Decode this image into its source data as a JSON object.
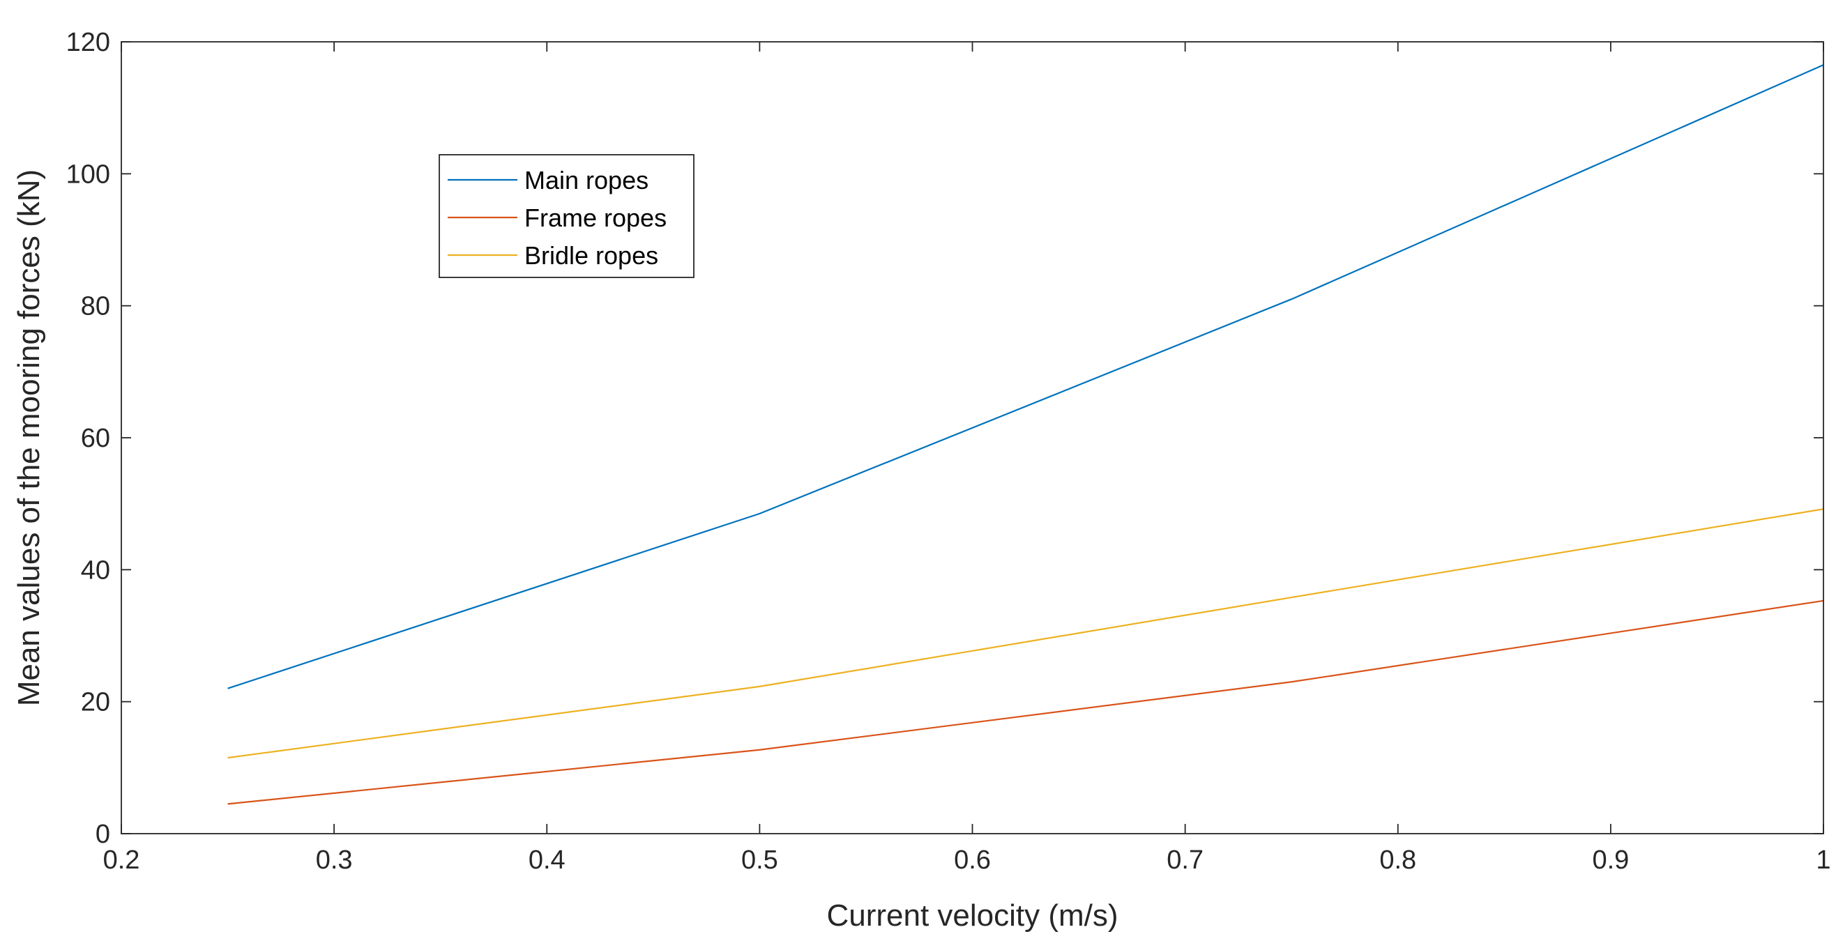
{
  "chart_data": {
    "type": "line",
    "title": "",
    "xlabel": "Current velocity (m/s)",
    "ylabel": "Mean values of the mooring forces (kN)",
    "xlim": [
      0.2,
      1.0
    ],
    "ylim": [
      0,
      120
    ],
    "xticks": [
      0.2,
      0.3,
      0.4,
      0.5,
      0.6,
      0.7,
      0.8,
      0.9,
      1.0
    ],
    "xtick_labels": [
      "0.2",
      "0.3",
      "0.4",
      "0.5",
      "0.6",
      "0.7",
      "0.8",
      "0.9",
      "1"
    ],
    "yticks": [
      0,
      20,
      40,
      60,
      80,
      100,
      120
    ],
    "ytick_labels": [
      "0",
      "20",
      "40",
      "60",
      "80",
      "100",
      "120"
    ],
    "grid": false,
    "legend_position": "top-left",
    "x": [
      0.25,
      0.5,
      0.75,
      1.0
    ],
    "series": [
      {
        "name": "Main ropes",
        "color": "#0072BD",
        "values": [
          22.0,
          48.5,
          81.0,
          116.5
        ]
      },
      {
        "name": "Frame ropes",
        "color": "#D95319",
        "values": [
          4.5,
          12.7,
          23.0,
          35.3
        ]
      },
      {
        "name": "Bridle ropes",
        "color": "#EDB120",
        "values": [
          11.5,
          22.3,
          35.8,
          49.2
        ]
      }
    ]
  }
}
